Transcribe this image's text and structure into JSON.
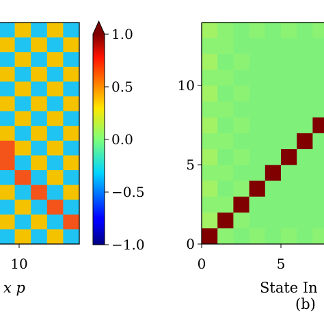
{
  "chart_data": [
    {
      "type": "heatmap",
      "panel": "left (cropped)",
      "pattern": "checkerboard",
      "visible_cells": {
        "rows": 15,
        "cols": 5
      },
      "values_key": "values",
      "diagonal_highlight": {
        "rows": [
          13,
          12,
          11,
          10,
          9,
          8
        ],
        "cols": [
          4,
          3,
          2,
          1,
          0,
          0
        ],
        "value": 0.6
      },
      "even_value": 0.35,
      "odd_value": -0.35,
      "x_ticks": [
        {
          "value": 10,
          "label": "10"
        }
      ],
      "xlabel": "x p",
      "colors": {
        "even": "#f5c200",
        "odd": "#1fc4f2",
        "highlight": "#f4541a"
      }
    },
    {
      "type": "colorbar",
      "colormap": "jet",
      "range": [
        -1.0,
        1.0
      ],
      "extend": "max",
      "ticks": [
        {
          "value": 1.0,
          "label": "1.0"
        },
        {
          "value": 0.5,
          "label": "0.5"
        },
        {
          "value": 0.0,
          "label": "0.0"
        },
        {
          "value": -0.5,
          "label": "−0.5"
        },
        {
          "value": -1.0,
          "label": "−1.0"
        }
      ]
    },
    {
      "type": "heatmap",
      "panel": "right (cropped)",
      "x_range": [
        0,
        14
      ],
      "y_range": [
        0,
        14
      ],
      "background_value": 0.0,
      "diagonal_value": 1.0,
      "diagonal_cells": [
        [
          0,
          0
        ],
        [
          1,
          1
        ],
        [
          2,
          2
        ],
        [
          3,
          3
        ],
        [
          4,
          4
        ],
        [
          5,
          5
        ],
        [
          6,
          6
        ],
        [
          7,
          7
        ]
      ],
      "x_ticks": [
        {
          "value": 0,
          "label": "0"
        },
        {
          "value": 5,
          "label": "5"
        }
      ],
      "y_ticks": [
        {
          "value": 0,
          "label": "0"
        },
        {
          "value": 5,
          "label": "5"
        },
        {
          "value": 10,
          "label": "10"
        }
      ],
      "xlabel": "State In",
      "panel_label": "(b)",
      "colors": {
        "background": "#7ff07a",
        "alt": "#8cf273",
        "edge": "#a3f265",
        "diagonal": "#800000"
      }
    }
  ]
}
